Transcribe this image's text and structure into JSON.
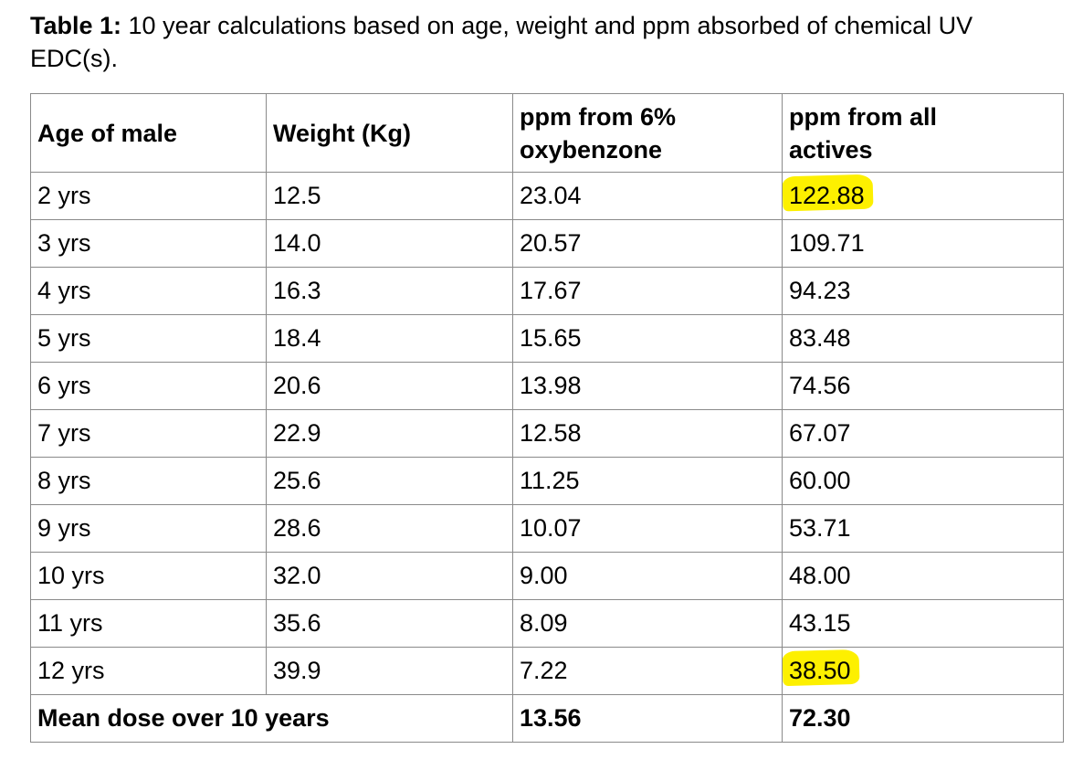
{
  "caption": {
    "label": "Table 1:",
    "text": " 10 year calculations based on age, weight and ppm absorbed of chemical UV EDC(s)."
  },
  "table": {
    "headers": [
      "Age of male",
      "Weight (Kg)",
      "ppm from 6%\noxybenzone",
      "ppm from all\nactives"
    ],
    "rows": [
      {
        "age": "2 yrs",
        "weight": "12.5",
        "ppm_oxybenzone": "23.04",
        "ppm_all": "122.88",
        "highlight": true
      },
      {
        "age": "3 yrs",
        "weight": "14.0",
        "ppm_oxybenzone": "20.57",
        "ppm_all": "109.71",
        "highlight": false
      },
      {
        "age": "4 yrs",
        "weight": "16.3",
        "ppm_oxybenzone": "17.67",
        "ppm_all": "94.23",
        "highlight": false
      },
      {
        "age": "5 yrs",
        "weight": "18.4",
        "ppm_oxybenzone": "15.65",
        "ppm_all": "83.48",
        "highlight": false
      },
      {
        "age": "6 yrs",
        "weight": "20.6",
        "ppm_oxybenzone": "13.98",
        "ppm_all": "74.56",
        "highlight": false
      },
      {
        "age": "7 yrs",
        "weight": "22.9",
        "ppm_oxybenzone": "12.58",
        "ppm_all": "67.07",
        "highlight": false
      },
      {
        "age": "8 yrs",
        "weight": "25.6",
        "ppm_oxybenzone": "11.25",
        "ppm_all": "60.00",
        "highlight": false
      },
      {
        "age": "9 yrs",
        "weight": "28.6",
        "ppm_oxybenzone": "10.07",
        "ppm_all": "53.71",
        "highlight": false
      },
      {
        "age": "10 yrs",
        "weight": "32.0",
        "ppm_oxybenzone": "9.00",
        "ppm_all": "48.00",
        "highlight": false
      },
      {
        "age": "11 yrs",
        "weight": "35.6",
        "ppm_oxybenzone": "8.09",
        "ppm_all": "43.15",
        "highlight": false
      },
      {
        "age": "12 yrs",
        "weight": "39.9",
        "ppm_oxybenzone": "7.22",
        "ppm_all": "38.50",
        "highlight": true
      }
    ],
    "footer": {
      "label": "Mean dose over 10 years",
      "ppm_oxybenzone": "13.56",
      "ppm_all": "72.30"
    }
  },
  "colors": {
    "text": "#000000",
    "border": "#8a8a8a",
    "highlight": "#fdf000",
    "background": "#ffffff"
  }
}
